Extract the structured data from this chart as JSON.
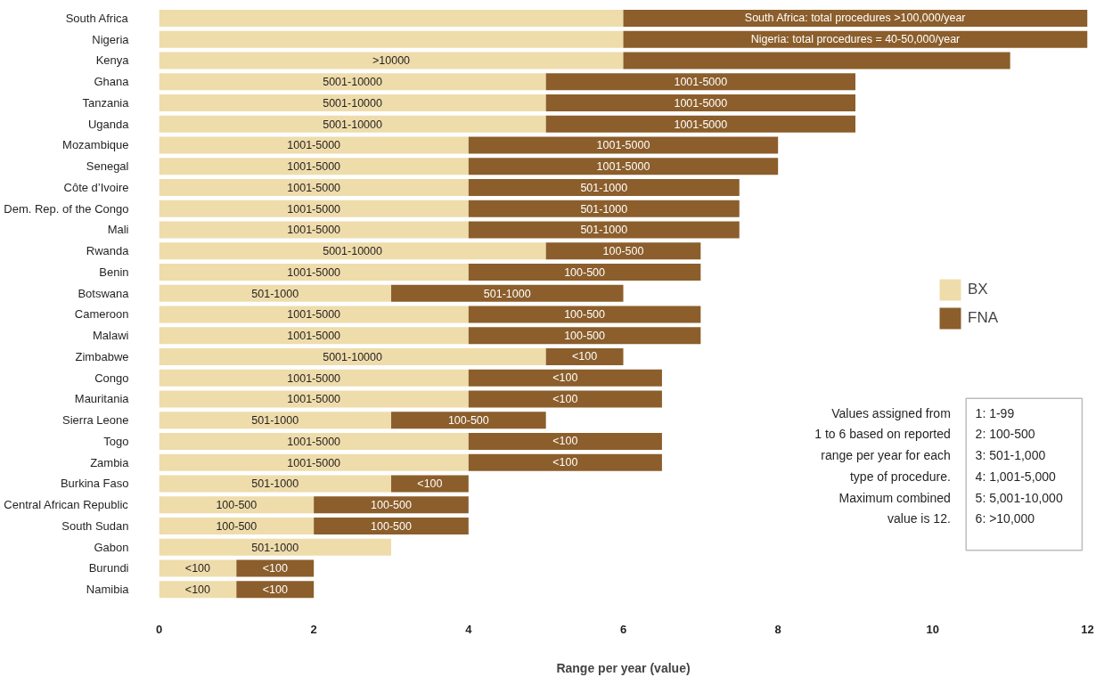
{
  "chart_data": {
    "type": "bar",
    "orientation": "horizontal",
    "stacked": true,
    "categories": [
      "South Africa",
      "Nigeria",
      "Kenya",
      "Ghana",
      "Tanzania",
      "Uganda",
      "Mozambique",
      "Senegal",
      "Côte d’Ivoire",
      "Dem. Rep. of the Congo",
      "Mali",
      "Rwanda",
      "Benin",
      "Botswana",
      "Cameroon",
      "Malawi",
      "Zimbabwe",
      "Congo",
      "Mauritania",
      "Sierra Leone",
      "Togo",
      "Zambia",
      "Burkina Faso",
      "Central African Republic",
      "South Sudan",
      "Gabon",
      "Burundi",
      "Namibia"
    ],
    "series": [
      {
        "name": "BX",
        "color": "#eedcab",
        "values": [
          6,
          6,
          6,
          5,
          5,
          5,
          4,
          4,
          4,
          4,
          4,
          5,
          4,
          3,
          4,
          4,
          5,
          4,
          4,
          3,
          4,
          4,
          3,
          2,
          2,
          3,
          1,
          1
        ],
        "value_labels": [
          null,
          null,
          ">10000",
          "5001-10000",
          "5001-10000",
          "5001-10000",
          "1001-5000",
          "1001-5000",
          "1001-5000",
          "1001-5000",
          "1001-5000",
          "5001-10000",
          "1001-5000",
          "501-1000",
          "1001-5000",
          "1001-5000",
          "5001-10000",
          "1001-5000",
          "1001-5000",
          "501-1000",
          "1001-5000",
          "1001-5000",
          "501-1000",
          "100-500",
          "100-500",
          "501-1000",
          "<100",
          "<100"
        ]
      },
      {
        "name": "FNA",
        "color": "#8b5e2b",
        "values": [
          6,
          6,
          5,
          4,
          4,
          4,
          4,
          4,
          3.5,
          3.5,
          3.5,
          2,
          3,
          3,
          3,
          3,
          1,
          2.5,
          2.5,
          2,
          2.5,
          2.5,
          1,
          2,
          2,
          null,
          1,
          1
        ],
        "value_labels": [
          "South Africa: total procedures >100,000/year",
          "Nigeria: total procedures = 40-50,000/year",
          null,
          "1001-5000",
          "1001-5000",
          "1001-5000",
          "1001-5000",
          "1001-5000",
          "501-1000",
          "501-1000",
          "501-1000",
          "100-500",
          "100-500",
          "501-1000",
          "100-500",
          "100-500",
          "<100",
          "<100",
          "<100",
          "100-500",
          "<100",
          "<100",
          "<100",
          "100-500",
          "100-500",
          null,
          "<100",
          "<100"
        ]
      }
    ],
    "xlim": [
      0,
      12
    ],
    "xticks": [
      0,
      2,
      4,
      6,
      8,
      10,
      12
    ],
    "xlabel": "Range per year (value)",
    "grid": false,
    "legend": "right",
    "annotations": [
      "Values assigned from",
      "1 to 6 based on reported",
      "range per year for each",
      "type of procedure.",
      "Maximum combined",
      "value is 12.",
      "1: 1-99",
      "2: 100-500",
      "3: 501-1,000",
      "4: 1,001-5,000",
      "5: 5,001-10,000",
      "6: >10,000"
    ]
  }
}
